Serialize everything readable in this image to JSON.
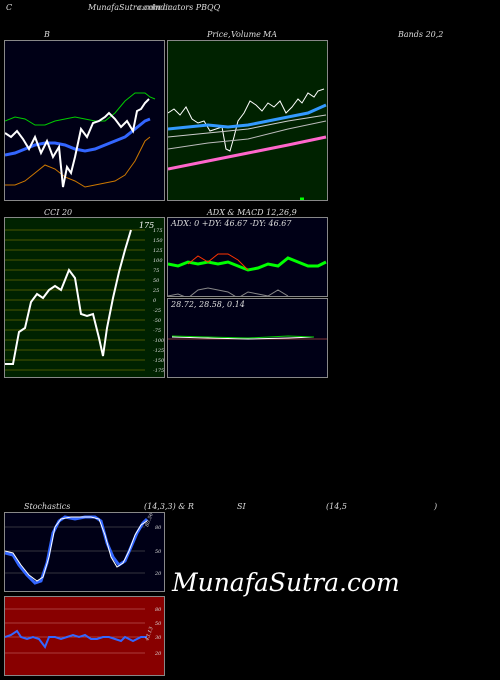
{
  "header": {
    "left": "C",
    "center": "MunafaSutra.com",
    "center2": "Indicators PBQQ",
    "overlap": "common"
  },
  "labels": {
    "bands_b": "B",
    "price_ma": "Price,",
    "volume": "Volume",
    "ma": "MA",
    "bands_title": "Bands 20,2",
    "cci": "CCI 20",
    "adx_macd": "ADX  & MACD 12,26,9",
    "adx_values": "ADX: 0  +DY: 46.67 -DY: 46.67",
    "macd_values": "28.72,  28.58,  0.14",
    "stoch": "Stochastics",
    "stoch_params": "(14,3,3) & R",
    "rsi": "SI",
    "rsi_params": "(14,5",
    "rsi_close": ")",
    "stoch_last": "80.56",
    "rsi_last": "43.13"
  },
  "watermark": "MunafaSutra.com",
  "colors": {
    "bands_bg": "#000016",
    "price_bg": "#002200",
    "cci_bg": "#002200",
    "adx_bg": "#000016",
    "stoch_bg": "#000016",
    "rsi_bg": "#880000"
  },
  "chart_data": [
    {
      "type": "line",
      "name": "bollinger",
      "series": [
        {
          "values": [
            138,
            136,
            140,
            142,
            141,
            138,
            144,
            150,
            148,
            146,
            144,
            140,
            136,
            134,
            138,
            142,
            146,
            146,
            140,
            130,
            120,
            112,
            106,
            100,
            96,
            90,
            84,
            80,
            78,
            80
          ]
        },
        {
          "values": [
            168,
            166,
            160,
            155,
            152,
            150,
            152,
            152,
            150,
            148,
            146,
            144,
            148,
            152,
            156,
            158,
            160,
            160,
            156,
            152,
            148,
            144,
            140,
            136,
            132,
            128,
            124,
            120,
            118,
            116
          ]
        }
      ]
    },
    {
      "type": "line",
      "name": "cci",
      "y_ticks": [
        175,
        150,
        125,
        100,
        75,
        50,
        25,
        0,
        -25,
        -50,
        -75,
        -100,
        -125,
        -150,
        -175
      ],
      "last_value": "175"
    },
    {
      "type": "line",
      "name": "stochastics",
      "y_ticks": [
        80,
        50,
        20
      ],
      "last_value": 80.56
    },
    {
      "type": "line",
      "name": "rsi",
      "y_ticks": [
        80,
        50,
        30,
        20
      ],
      "last_value": 43.13
    }
  ]
}
